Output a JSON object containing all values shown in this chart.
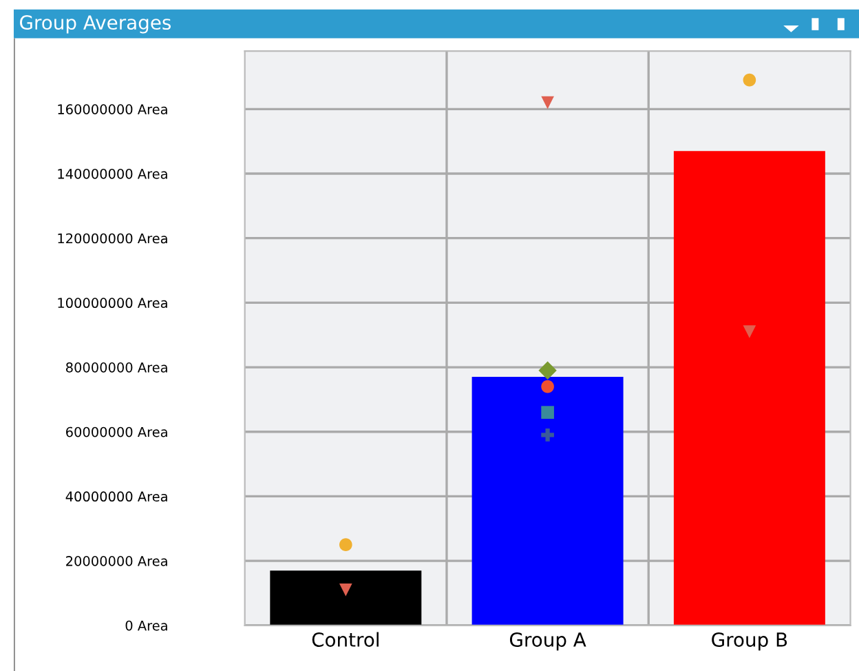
{
  "chart_data": {
    "type": "bar",
    "title": "Group Averages",
    "categories": [
      "Control",
      "Group A",
      "Group B"
    ],
    "values": [
      17000000,
      77000000,
      147000000
    ],
    "colors": [
      "#000000",
      "#0000ff",
      "#ff0000"
    ],
    "series": [
      {
        "type": "scatter",
        "marker": "circle",
        "color": "#f0b030",
        "x": [
          "Control",
          "Group B"
        ],
        "values": [
          25000000,
          169000000
        ]
      },
      {
        "type": "scatter",
        "marker": "triangle",
        "color": "#e06050",
        "x": [
          "Control",
          "Group A",
          "Group B"
        ],
        "values": [
          11000000,
          162000000,
          91000000
        ]
      },
      {
        "type": "scatter",
        "marker": "diamond",
        "color": "#7a9a30",
        "x": [
          "Group A"
        ],
        "values": [
          79000000
        ]
      },
      {
        "type": "scatter",
        "marker": "circle",
        "color": "#f05030",
        "x": [
          "Group A"
        ],
        "values": [
          74000000
        ]
      },
      {
        "type": "scatter",
        "marker": "square",
        "color": "#3a8a9a",
        "x": [
          "Group A"
        ],
        "values": [
          66000000
        ]
      },
      {
        "type": "scatter",
        "marker": "cross",
        "color": "#3a5a9a",
        "x": [
          "Group A"
        ],
        "values": [
          59000000
        ]
      }
    ],
    "ylim": [
      0,
      178000000
    ],
    "yticks": [
      {
        "value": 0,
        "label": "0 Area"
      },
      {
        "value": 20000000,
        "label": "20000000 Area"
      },
      {
        "value": 40000000,
        "label": "40000000 Area"
      },
      {
        "value": 60000000,
        "label": "60000000 Area"
      },
      {
        "value": 80000000,
        "label": "80000000 Area"
      },
      {
        "value": 100000000,
        "label": "100000000 Area"
      },
      {
        "value": 120000000,
        "label": "120000000 Area"
      },
      {
        "value": 140000000,
        "label": "140000000 Area"
      },
      {
        "value": 160000000,
        "label": "160000000 Area"
      }
    ],
    "grid": true,
    "legend": false
  }
}
